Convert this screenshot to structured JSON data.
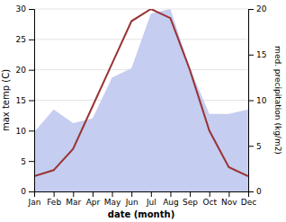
{
  "chart_data": {
    "type": "line",
    "categories": [
      "Jan",
      "Feb",
      "Mar",
      "Apr",
      "May",
      "Jun",
      "Jul",
      "Aug",
      "Sep",
      "Oct",
      "Nov",
      "Dec"
    ],
    "series": [
      {
        "type": "area",
        "axis": "y2",
        "color": "#c5cdf0",
        "values": [
          6.5,
          9.0,
          7.5,
          8.0,
          12.5,
          13.5,
          19.5,
          20.0,
          13.5,
          8.5,
          8.5,
          9.0
        ]
      },
      {
        "type": "line",
        "color": "#993333",
        "values": [
          2.5,
          3.5,
          7,
          14,
          21,
          28,
          30,
          28.5,
          20,
          10,
          4,
          2.5
        ]
      }
    ],
    "x_label": "date (month)",
    "y_label": "max temp (C)",
    "y2_label": "med. precipitation (kg/m2)",
    "ylim": [
      0,
      30
    ],
    "yticks": [
      0,
      5,
      10,
      15,
      20,
      25,
      30
    ],
    "y2lim": [
      0,
      20
    ],
    "y2ticks": [
      0,
      5,
      10,
      15,
      20
    ],
    "grid": true
  }
}
